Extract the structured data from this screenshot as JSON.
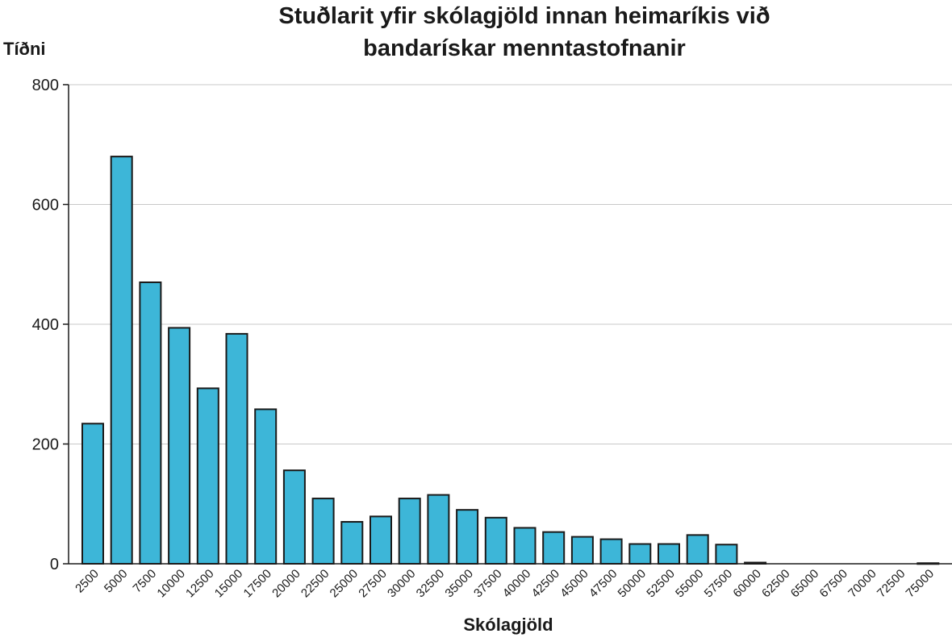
{
  "chart_data": {
    "type": "bar",
    "title": "Stuðlarit yfir skólagjöld innan heimaríkis við bandarískar menntastofnanir",
    "title_lines": [
      "Stuðlarit yfir skólagjöld innan heimaríkis við",
      "bandarískar menntastofnanir"
    ],
    "xlabel": "Skólagjöld",
    "ylabel": "Tíðni",
    "categories": [
      "2500",
      "5000",
      "7500",
      "10000",
      "12500",
      "15000",
      "17500",
      "20000",
      "22500",
      "25000",
      "27500",
      "30000",
      "32500",
      "35000",
      "37500",
      "40000",
      "42500",
      "45000",
      "47500",
      "50000",
      "52500",
      "55000",
      "57500",
      "60000",
      "62500",
      "65000",
      "67500",
      "70000",
      "72500",
      "75000"
    ],
    "values": [
      234,
      680,
      470,
      394,
      293,
      384,
      258,
      156,
      109,
      70,
      79,
      109,
      115,
      90,
      77,
      60,
      53,
      45,
      41,
      33,
      33,
      48,
      32,
      2,
      0,
      0,
      0,
      0,
      0,
      1
    ],
    "ylim": [
      0,
      800
    ],
    "yticks": [
      "0",
      "200",
      "400",
      "600",
      "800"
    ],
    "grid": true,
    "bar_color": "#3db6d8",
    "bar_edge_color": "#1a1a1a"
  }
}
